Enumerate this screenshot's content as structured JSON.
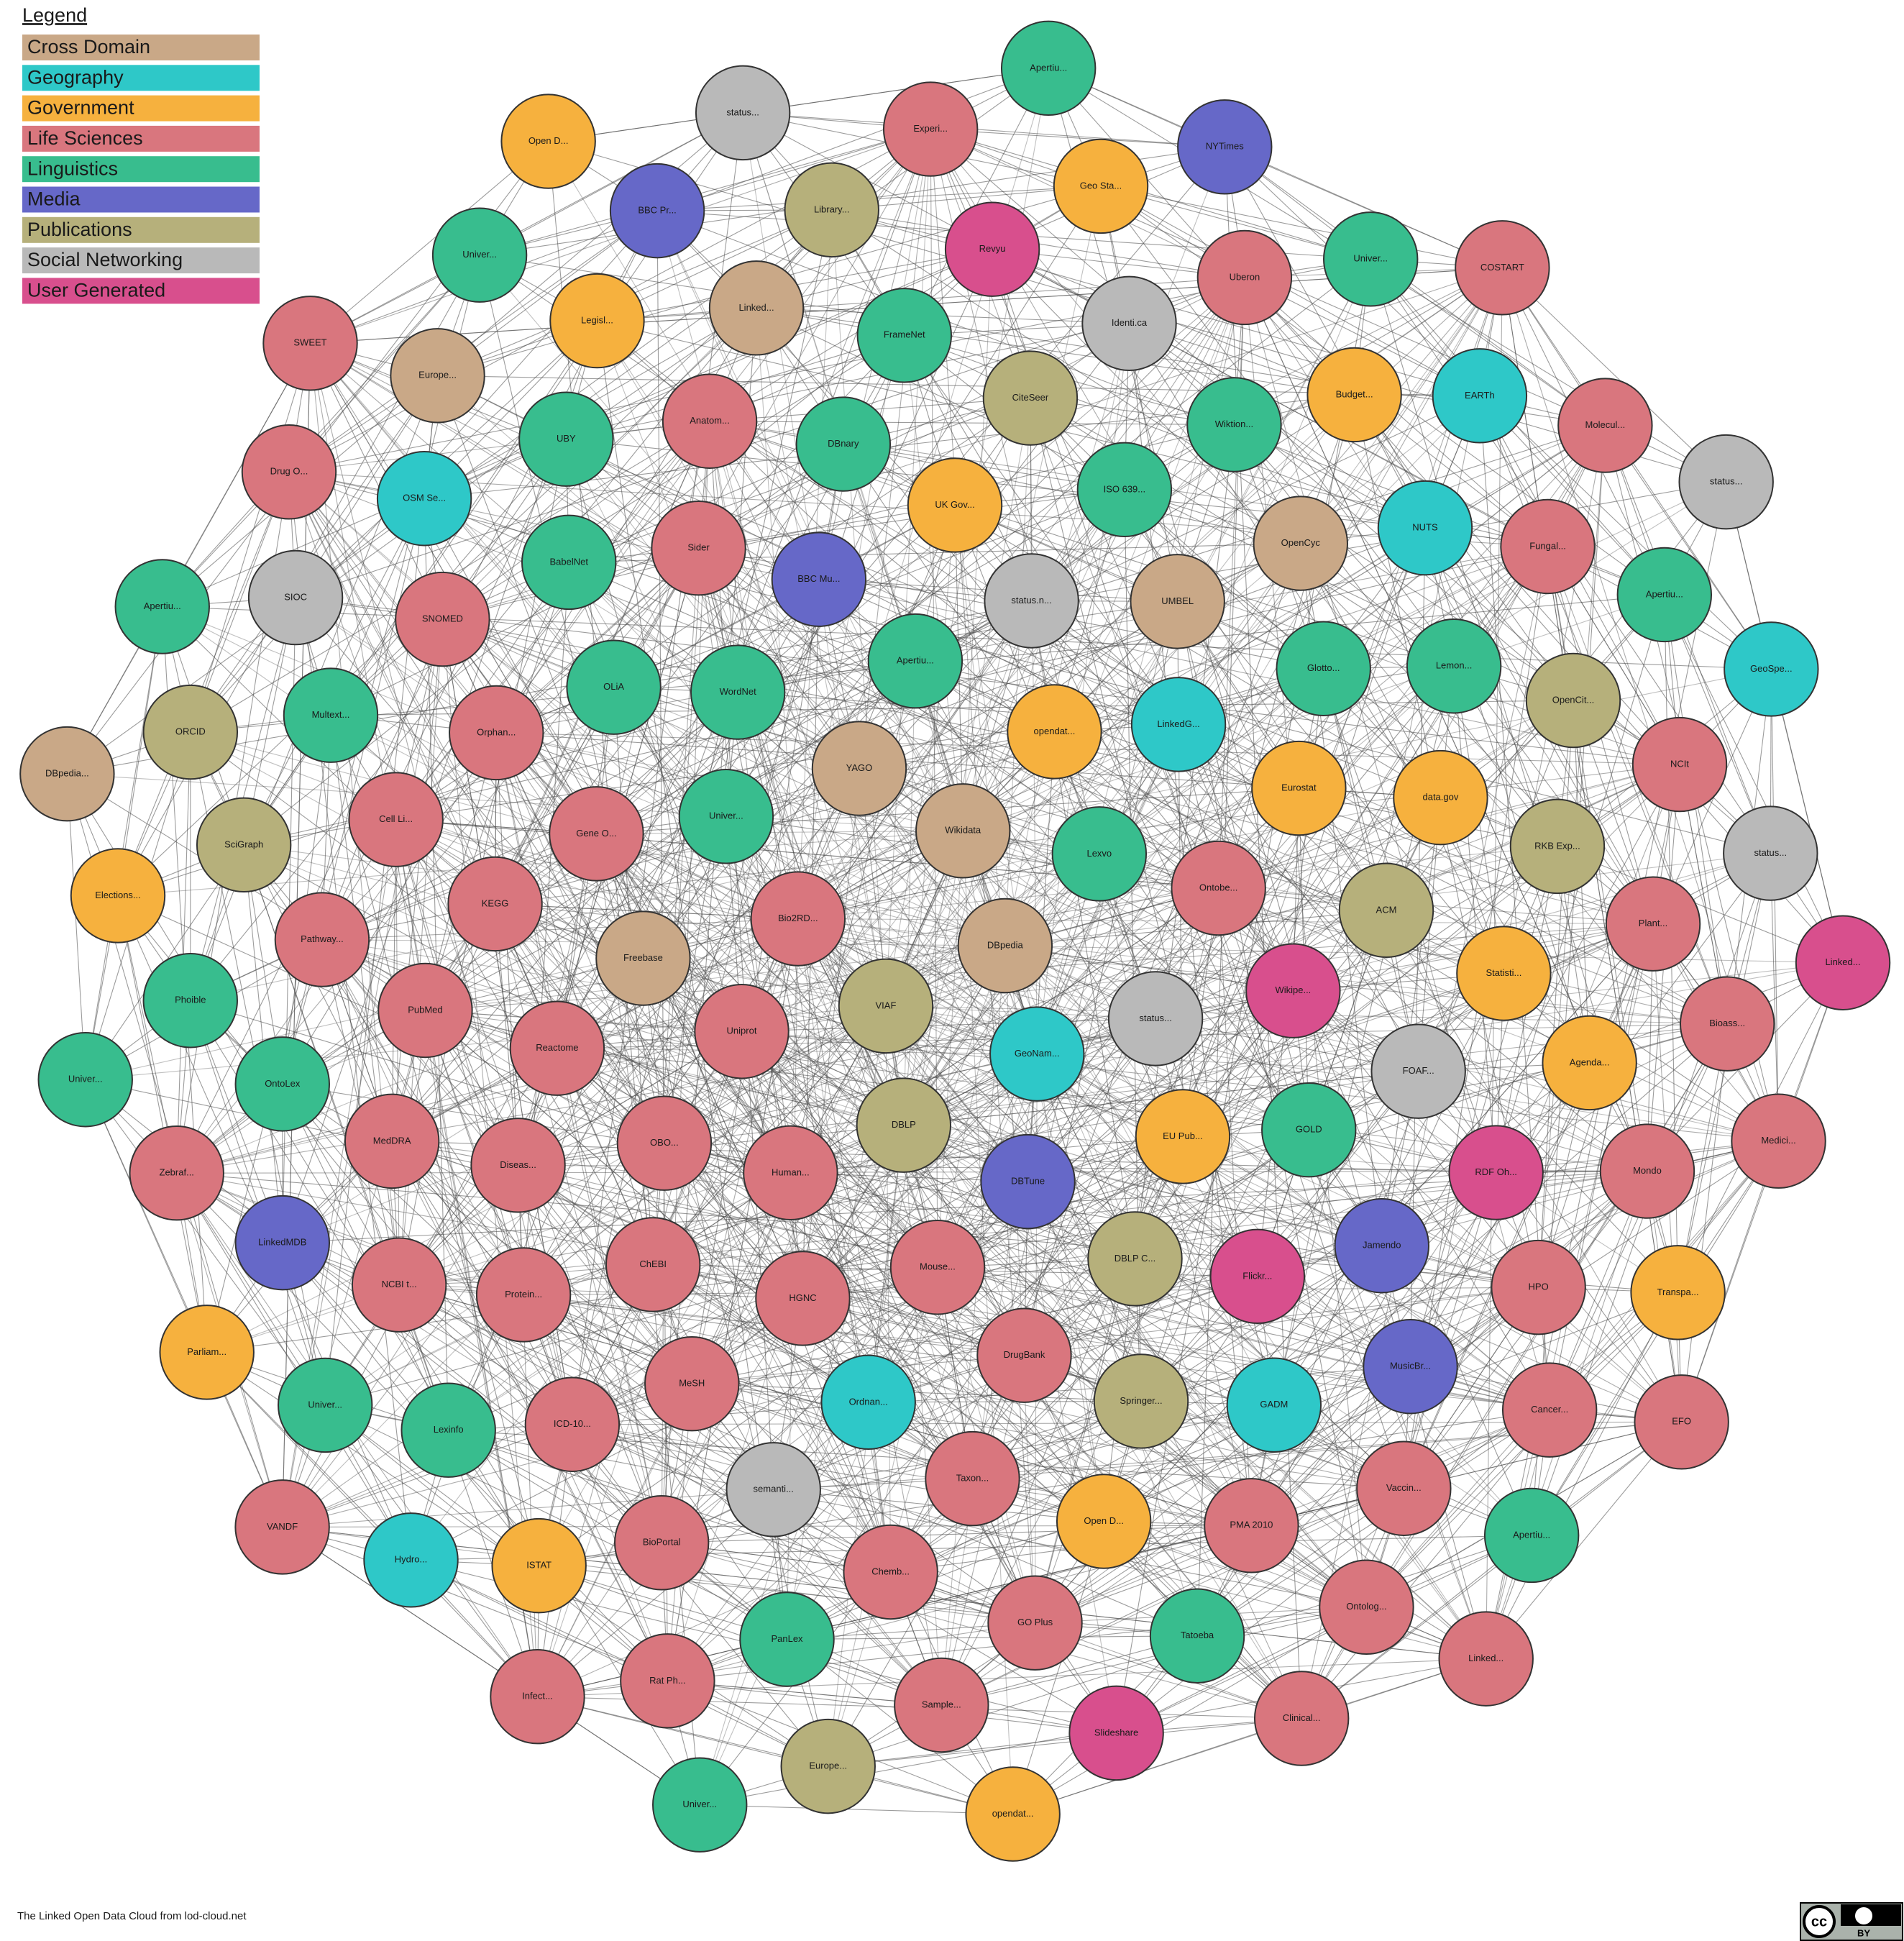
{
  "legend": {
    "title": "Legend",
    "items": [
      {
        "label": "Cross Domain",
        "color": "#c9a887"
      },
      {
        "label": "Geography",
        "color": "#2ec8c8"
      },
      {
        "label": "Government",
        "color": "#f6b13e"
      },
      {
        "label": "Life Sciences",
        "color": "#d9767e"
      },
      {
        "label": "Linguistics",
        "color": "#38bd8e"
      },
      {
        "label": "Media",
        "color": "#6668c8"
      },
      {
        "label": "Publications",
        "color": "#b6b07b"
      },
      {
        "label": "Social Networking",
        "color": "#b9b9b9"
      },
      {
        "label": "User Generated",
        "color": "#d84f8d"
      }
    ]
  },
  "nodes": [
    {
      "label": "DBpedia",
      "domain": 0
    },
    {
      "label": "VIAF",
      "domain": 6
    },
    {
      "label": "Wikidata",
      "domain": 0
    },
    {
      "label": "GeoNam...",
      "domain": 1
    },
    {
      "label": "Bio2RD...",
      "domain": 3
    },
    {
      "label": "Lexvo",
      "domain": 4
    },
    {
      "label": "DBLP",
      "domain": 6
    },
    {
      "label": "YAGO",
      "domain": 0
    },
    {
      "label": "status...",
      "domain": 7
    },
    {
      "label": "Uniprot",
      "domain": 3
    },
    {
      "label": "opendat...",
      "domain": 2
    },
    {
      "label": "DBTune",
      "domain": 5
    },
    {
      "label": "Univer...",
      "domain": 4
    },
    {
      "label": "Ontobe...",
      "domain": 3
    },
    {
      "label": "Human...",
      "domain": 3
    },
    {
      "label": "Apertiu...",
      "domain": 4
    },
    {
      "label": "EU Pub...",
      "domain": 2
    },
    {
      "label": "Freebase",
      "domain": 0
    },
    {
      "label": "LinkedG...",
      "domain": 1
    },
    {
      "label": "Mouse...",
      "domain": 3
    },
    {
      "label": "WordNet",
      "domain": 4
    },
    {
      "label": "Wikipe...",
      "domain": 8
    },
    {
      "label": "OBO...",
      "domain": 3
    },
    {
      "label": "status.n...",
      "domain": 7
    },
    {
      "label": "DBLP C...",
      "domain": 6
    },
    {
      "label": "Gene O...",
      "domain": 3
    },
    {
      "label": "Eurostat",
      "domain": 2
    },
    {
      "label": "HGNC",
      "domain": 3
    },
    {
      "label": "BBC Mu...",
      "domain": 5
    },
    {
      "label": "GOLD",
      "domain": 4
    },
    {
      "label": "Reactome",
      "domain": 3
    },
    {
      "label": "UMBEL",
      "domain": 0
    },
    {
      "label": "DrugBank",
      "domain": 3
    },
    {
      "label": "OLiA",
      "domain": 4
    },
    {
      "label": "ACM",
      "domain": 6
    },
    {
      "label": "ChEBI",
      "domain": 3
    },
    {
      "label": "UK Gov...",
      "domain": 2
    },
    {
      "label": "Flickr...",
      "domain": 8
    },
    {
      "label": "KEGG",
      "domain": 3
    },
    {
      "label": "Glotto...",
      "domain": 4
    },
    {
      "label": "Ordnan...",
      "domain": 1
    },
    {
      "label": "Sider",
      "domain": 3
    },
    {
      "label": "FOAF...",
      "domain": 7
    },
    {
      "label": "Diseas...",
      "domain": 3
    },
    {
      "label": "ISO 639...",
      "domain": 4
    },
    {
      "label": "Springer...",
      "domain": 6
    },
    {
      "label": "Orphan...",
      "domain": 3
    },
    {
      "label": "data.gov",
      "domain": 2
    },
    {
      "label": "MeSH",
      "domain": 3
    },
    {
      "label": "DBnary",
      "domain": 4
    },
    {
      "label": "Jamendo",
      "domain": 5
    },
    {
      "label": "PubMed",
      "domain": 3
    },
    {
      "label": "OpenCyc",
      "domain": 0
    },
    {
      "label": "Taxon...",
      "domain": 3
    },
    {
      "label": "BabelNet",
      "domain": 4
    },
    {
      "label": "Statisti...",
      "domain": 2
    },
    {
      "label": "Protein...",
      "domain": 3
    },
    {
      "label": "CiteSeer",
      "domain": 6
    },
    {
      "label": "GADM",
      "domain": 1
    },
    {
      "label": "Cell Li...",
      "domain": 3
    },
    {
      "label": "Lemon...",
      "domain": 4
    },
    {
      "label": "semanti...",
      "domain": 7
    },
    {
      "label": "Anatom...",
      "domain": 3
    },
    {
      "label": "RDF Oh...",
      "domain": 8
    },
    {
      "label": "MedDRA",
      "domain": 3
    },
    {
      "label": "Wiktion...",
      "domain": 4
    },
    {
      "label": "Open D...",
      "domain": 2
    },
    {
      "label": "SNOMED",
      "domain": 3
    },
    {
      "label": "RKB Exp...",
      "domain": 6
    },
    {
      "label": "ICD-10...",
      "domain": 3
    },
    {
      "label": "FrameNet",
      "domain": 4
    },
    {
      "label": "MusicBr...",
      "domain": 5
    },
    {
      "label": "Pathway...",
      "domain": 3
    },
    {
      "label": "NUTS",
      "domain": 1
    },
    {
      "label": "Chemb...",
      "domain": 3
    },
    {
      "label": "UBY",
      "domain": 4
    },
    {
      "label": "Agenda...",
      "domain": 2
    },
    {
      "label": "NCBI t...",
      "domain": 3
    },
    {
      "label": "Identi.ca",
      "domain": 7
    },
    {
      "label": "PMA 2010",
      "domain": 3
    },
    {
      "label": "Multext...",
      "domain": 4
    },
    {
      "label": "OpenCit...",
      "domain": 6
    },
    {
      "label": "BioPortal",
      "domain": 3
    },
    {
      "label": "Linked...",
      "domain": 0
    },
    {
      "label": "HPO",
      "domain": 3
    },
    {
      "label": "OntoLex",
      "domain": 4
    },
    {
      "label": "Budget...",
      "domain": 2
    },
    {
      "label": "GO Plus",
      "domain": 3
    },
    {
      "label": "OSM Se...",
      "domain": 1
    },
    {
      "label": "Plant...",
      "domain": 3
    },
    {
      "label": "Lexinfo",
      "domain": 4
    },
    {
      "label": "Revyu",
      "domain": 8
    },
    {
      "label": "Vaccin...",
      "domain": 3
    },
    {
      "label": "SciGraph",
      "domain": 6
    },
    {
      "label": "Fungal...",
      "domain": 3
    },
    {
      "label": "PanLex",
      "domain": 4
    },
    {
      "label": "Legisl...",
      "domain": 2
    },
    {
      "label": "Mondo",
      "domain": 3
    },
    {
      "label": "LinkedMDB",
      "domain": 5
    },
    {
      "label": "Uberon",
      "domain": 3
    },
    {
      "label": "Tatoeba",
      "domain": 4
    },
    {
      "label": "SIOC",
      "domain": 7
    },
    {
      "label": "NCIt",
      "domain": 3
    },
    {
      "label": "ISTAT",
      "domain": 2
    },
    {
      "label": "Library...",
      "domain": 6
    },
    {
      "label": "Cancer...",
      "domain": 3
    },
    {
      "label": "Phoible",
      "domain": 4
    },
    {
      "label": "EARTh",
      "domain": 1
    },
    {
      "label": "Sample...",
      "domain": 3
    },
    {
      "label": "Europe...",
      "domain": 0
    },
    {
      "label": "Bioass...",
      "domain": 3
    },
    {
      "label": "Univer...",
      "domain": 4
    },
    {
      "label": "Geo Sta...",
      "domain": 2
    },
    {
      "label": "Ontolog...",
      "domain": 3
    },
    {
      "label": "ORCID",
      "domain": 6
    },
    {
      "label": "Apertiu...",
      "domain": 4
    },
    {
      "label": "Rat Ph...",
      "domain": 3
    },
    {
      "label": "BBC Pr...",
      "domain": 5
    },
    {
      "label": "Transpa...",
      "domain": 2
    },
    {
      "label": "Zebraf...",
      "domain": 3
    },
    {
      "label": "Univer...",
      "domain": 4
    },
    {
      "label": "Slideshare",
      "domain": 8
    },
    {
      "label": "Drug O...",
      "domain": 3
    },
    {
      "label": "status...",
      "domain": 7
    },
    {
      "label": "Hydro...",
      "domain": 1
    },
    {
      "label": "Experi...",
      "domain": 3
    },
    {
      "label": "Apertiu...",
      "domain": 4
    },
    {
      "label": "Elections...",
      "domain": 2
    },
    {
      "label": "Molecul...",
      "domain": 3
    },
    {
      "label": "Europe...",
      "domain": 6
    },
    {
      "label": "Univer...",
      "domain": 4
    },
    {
      "label": "Medici...",
      "domain": 3
    },
    {
      "label": "Parliam...",
      "domain": 2
    },
    {
      "label": "NYTimes",
      "domain": 5
    },
    {
      "label": "Clinical...",
      "domain": 3
    },
    {
      "label": "Apertiu...",
      "domain": 4
    },
    {
      "label": "GeoSpe...",
      "domain": 1
    },
    {
      "label": "Infect...",
      "domain": 3
    },
    {
      "label": "status...",
      "domain": 7
    },
    {
      "label": "EFO",
      "domain": 3
    },
    {
      "label": "Univer...",
      "domain": 4
    },
    {
      "label": "COSTART",
      "domain": 3
    },
    {
      "label": "opendat...",
      "domain": 2
    },
    {
      "label": "SWEET",
      "domain": 3
    },
    {
      "label": "Linked...",
      "domain": 8
    },
    {
      "label": "VANDF",
      "domain": 3
    },
    {
      "label": "Apertiu...",
      "domain": 4
    },
    {
      "label": "Linked...",
      "domain": 3
    },
    {
      "label": "DBpedia...",
      "domain": 0
    },
    {
      "label": "status...",
      "domain": 7
    },
    {
      "label": "Univer...",
      "domain": 4
    },
    {
      "label": "Open D...",
      "domain": 2
    }
  ],
  "footer": "The Linked Open Data Cloud from lod-cloud.net",
  "badge": {
    "cc": "cc",
    "by": "BY"
  }
}
